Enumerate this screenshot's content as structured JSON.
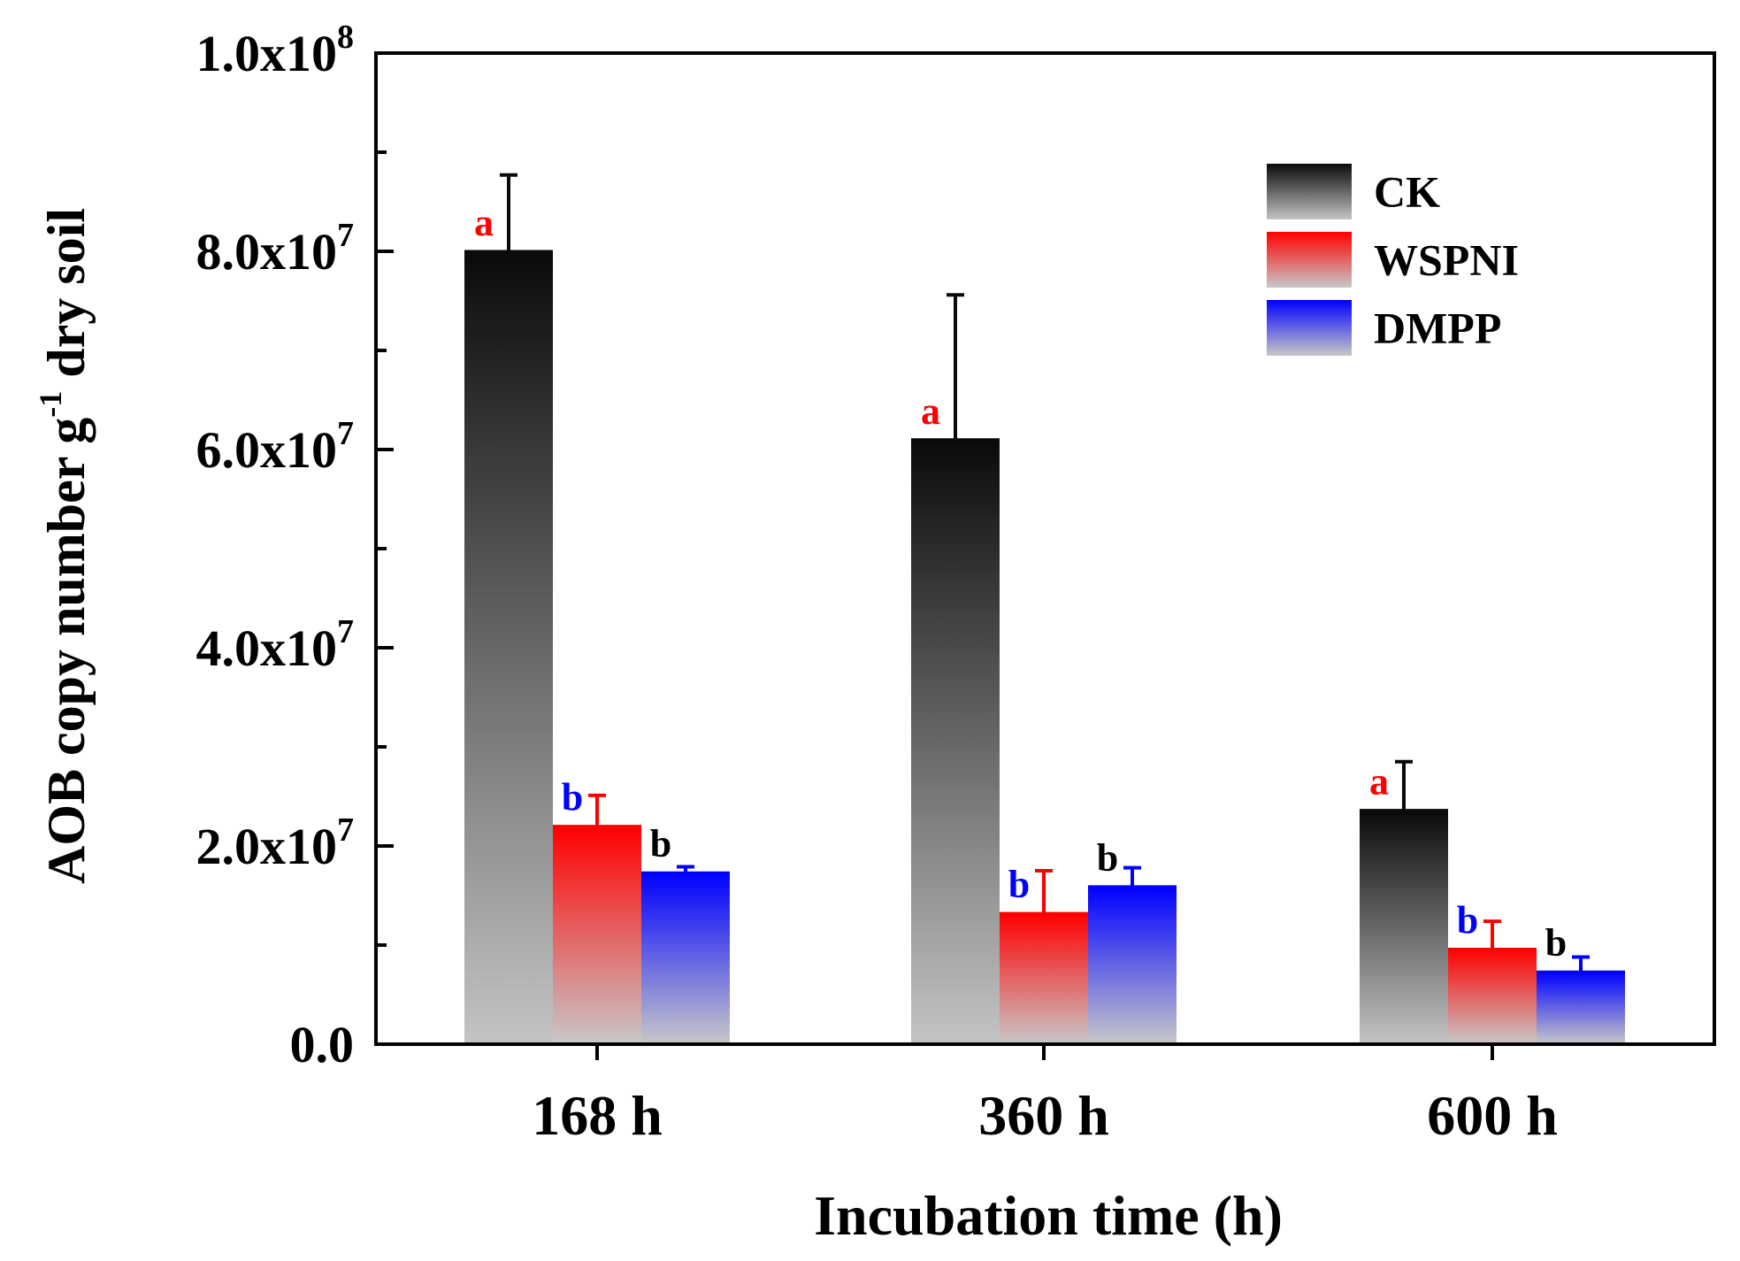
{
  "chart_data": {
    "type": "bar",
    "title": "",
    "xlabel": "Incubation time (h)",
    "ylabel": {
      "prefix": "AOB copy number g",
      "superscript": "-1",
      "suffix": " dry soil"
    },
    "categories": [
      "168 h",
      "360 h",
      "600 h"
    ],
    "ylim": [
      0,
      100000000
    ],
    "y_major_ticks": [
      {
        "value": 0,
        "mantissa": "0.0",
        "exponent": ""
      },
      {
        "value": 20000000,
        "mantissa": "2.0x10",
        "exponent": "7"
      },
      {
        "value": 40000000,
        "mantissa": "4.0x10",
        "exponent": "7"
      },
      {
        "value": 60000000,
        "mantissa": "6.0x10",
        "exponent": "7"
      },
      {
        "value": 80000000,
        "mantissa": "8.0x10",
        "exponent": "7"
      },
      {
        "value": 100000000,
        "mantissa": "1.0x10",
        "exponent": "8"
      }
    ],
    "y_minor_step": 10000000,
    "legend_position": "top-right",
    "series": [
      {
        "name": "CK",
        "color_top": "#0a0a0a",
        "color_bottom": "#c4c4c4",
        "values": [
          80000000,
          61000000,
          23600000
        ],
        "errors": [
          7700000,
          14600000,
          4900000
        ],
        "letters": [
          "a",
          "a",
          "a"
        ],
        "letter_color": "#ff0000"
      },
      {
        "name": "WSPNI",
        "color_top": "#ff0000",
        "color_bottom": "#c8c8c8",
        "values": [
          22000000,
          13200000,
          9600000
        ],
        "errors": [
          3100000,
          4300000,
          2800000
        ],
        "letters": [
          "b",
          "b",
          "b"
        ],
        "letter_color": "#0000ff"
      },
      {
        "name": "DMPP",
        "color_top": "#0000ff",
        "color_bottom": "#c8c8c8",
        "values": [
          17300000,
          15900000,
          7300000
        ],
        "errors": [
          600000,
          1900000,
          1500000
        ],
        "letters": [
          "b",
          "b",
          "b"
        ],
        "letter_color": "#000000"
      }
    ]
  }
}
